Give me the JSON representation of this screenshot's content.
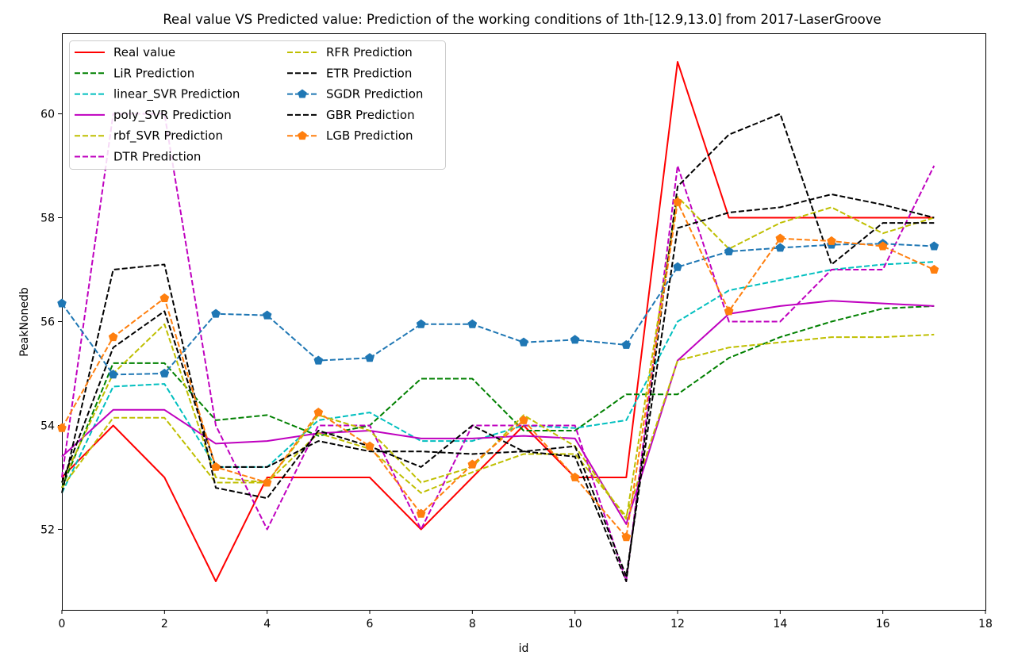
{
  "chart_data": {
    "type": "line",
    "title": "Real value VS Predicted value: Prediction of the working conditions of 1th-[12.9,13.0] from 2017-LaserGroove",
    "xlabel": "id",
    "ylabel": "PeakNonedb",
    "xlim": [
      0,
      18
    ],
    "ylim": [
      50.45,
      61.55
    ],
    "xticks": [
      0,
      2,
      4,
      6,
      8,
      10,
      12,
      14,
      16,
      18
    ],
    "yticks": [
      52,
      54,
      56,
      58,
      60
    ],
    "x": [
      0,
      1,
      2,
      3,
      4,
      5,
      6,
      7,
      8,
      9,
      10,
      11,
      12,
      13,
      14,
      15,
      16,
      17
    ],
    "legend_position": "upper-left",
    "series": [
      {
        "name": "Real value",
        "color": "#ff0000",
        "style": "solid",
        "marker": "none",
        "values": [
          53.0,
          54.0,
          53.0,
          51.0,
          53.0,
          53.0,
          53.0,
          52.0,
          53.0,
          54.0,
          53.0,
          53.0,
          61.0,
          58.0,
          58.0,
          58.0,
          58.0,
          58.0
        ]
      },
      {
        "name": "LiR Prediction",
        "color": "#008000",
        "style": "dashed",
        "marker": "none",
        "values": [
          52.8,
          55.2,
          55.2,
          54.1,
          54.2,
          53.8,
          54.0,
          54.9,
          54.9,
          53.9,
          53.9,
          54.6,
          54.6,
          55.3,
          55.7,
          56.0,
          56.25,
          56.3
        ]
      },
      {
        "name": "linear_SVR Prediction",
        "color": "#00bfbf",
        "style": "dashed",
        "marker": "none",
        "values": [
          52.7,
          54.75,
          54.8,
          53.2,
          53.2,
          54.1,
          54.25,
          53.7,
          53.7,
          54.0,
          53.95,
          54.1,
          56.0,
          56.6,
          56.8,
          57.0,
          57.1,
          57.15
        ]
      },
      {
        "name": "poly_SVR Prediction",
        "color": "#bf00bf",
        "style": "solid",
        "marker": "none",
        "values": [
          53.4,
          54.3,
          54.3,
          53.65,
          53.7,
          53.85,
          53.9,
          53.75,
          53.75,
          53.8,
          53.75,
          52.1,
          55.25,
          56.15,
          56.3,
          56.4,
          56.35,
          56.3
        ]
      },
      {
        "name": "rbf_SVR Prediction",
        "color": "#bfbf00",
        "style": "dashed",
        "marker": "none",
        "values": [
          52.8,
          54.15,
          54.15,
          52.9,
          52.9,
          53.85,
          53.55,
          52.7,
          53.1,
          53.45,
          53.45,
          52.25,
          55.25,
          55.5,
          55.6,
          55.7,
          55.7,
          55.75
        ]
      },
      {
        "name": "DTR Prediction",
        "color": "#bf00bf",
        "style": "dashed",
        "marker": "none",
        "values": [
          53.0,
          60.0,
          60.0,
          54.0,
          52.0,
          54.0,
          54.0,
          52.0,
          54.0,
          54.0,
          54.0,
          51.0,
          59.0,
          56.0,
          56.0,
          57.0,
          57.0,
          59.0
        ]
      },
      {
        "name": "RFR Prediction",
        "color": "#bfbf00",
        "style": "dashed",
        "marker": "none",
        "values": [
          52.9,
          55.0,
          55.95,
          53.0,
          52.9,
          54.2,
          53.9,
          52.9,
          53.2,
          54.2,
          53.6,
          52.2,
          58.4,
          57.4,
          57.9,
          58.2,
          57.7,
          58.0
        ]
      },
      {
        "name": "ETR Prediction",
        "color": "#000000",
        "style": "dashed",
        "marker": "none",
        "values": [
          52.7,
          57.0,
          57.1,
          52.8,
          52.6,
          53.9,
          53.6,
          53.2,
          54.0,
          53.5,
          53.4,
          51.0,
          58.6,
          59.6,
          60.0,
          57.1,
          57.9,
          57.9
        ]
      },
      {
        "name": "SGDR Prediction",
        "color": "#1f77b4",
        "style": "dashed",
        "marker": "pentagon",
        "values": [
          56.35,
          54.98,
          55.0,
          56.15,
          56.12,
          55.25,
          55.3,
          55.95,
          55.95,
          55.6,
          55.65,
          55.55,
          57.05,
          57.35,
          57.42,
          57.48,
          57.5,
          57.45
        ]
      },
      {
        "name": "GBR Prediction",
        "color": "#000000",
        "style": "dashed",
        "marker": "none",
        "values": [
          52.9,
          55.5,
          56.2,
          53.2,
          53.2,
          53.7,
          53.5,
          53.5,
          53.45,
          53.5,
          53.6,
          51.1,
          57.8,
          58.1,
          58.2,
          58.45,
          58.25,
          58.0
        ]
      },
      {
        "name": "LGB Prediction",
        "color": "#ff7f0e",
        "style": "dashed",
        "marker": "pentagon",
        "values": [
          53.95,
          55.7,
          56.45,
          53.2,
          52.9,
          54.25,
          53.6,
          52.3,
          53.25,
          54.1,
          53.0,
          51.85,
          58.3,
          56.2,
          57.6,
          57.55,
          57.45,
          57.0
        ]
      }
    ]
  }
}
